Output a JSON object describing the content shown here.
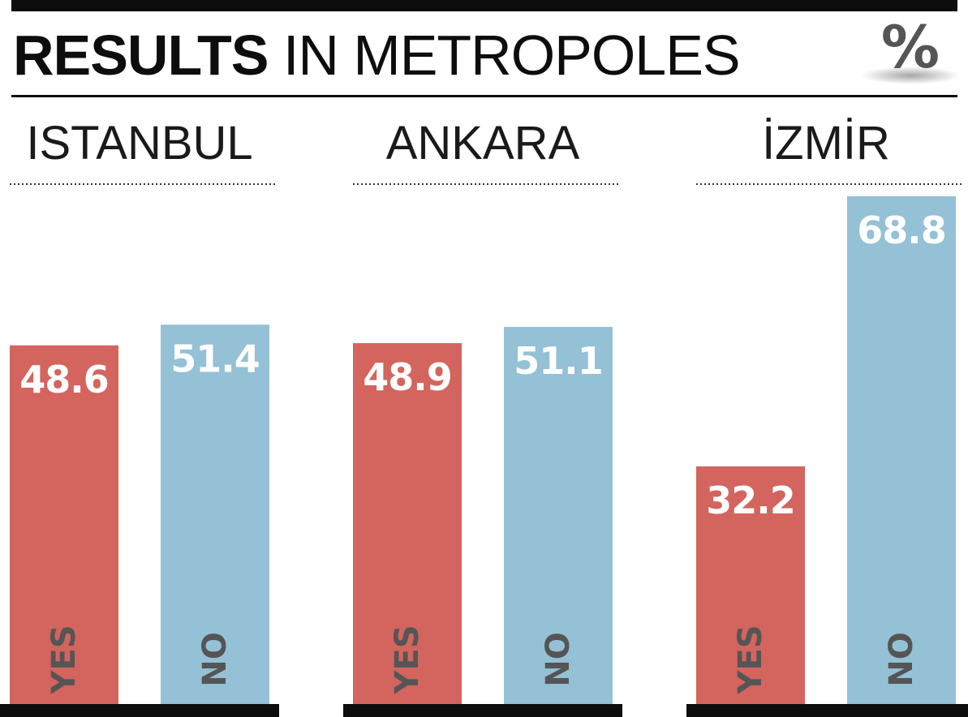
{
  "header": {
    "title_bold": "RESULTS",
    "title_regular": "IN METROPOLES",
    "unit_symbol": "%"
  },
  "colors": {
    "yes": "#d4645e",
    "no": "#94c1d6",
    "rule": "#0d0d0d"
  },
  "chart_data": {
    "type": "bar",
    "unit": "%",
    "ylim": [
      0,
      70
    ],
    "grid": false,
    "legend": "none",
    "categories": [
      "YES",
      "NO"
    ],
    "groups": [
      {
        "title": "ISTANBUL",
        "values": [
          48.6,
          51.4
        ]
      },
      {
        "title": "ANKARA",
        "values": [
          48.9,
          51.1
        ]
      },
      {
        "title": "İZMİR",
        "values": [
          32.2,
          68.8
        ]
      }
    ]
  }
}
